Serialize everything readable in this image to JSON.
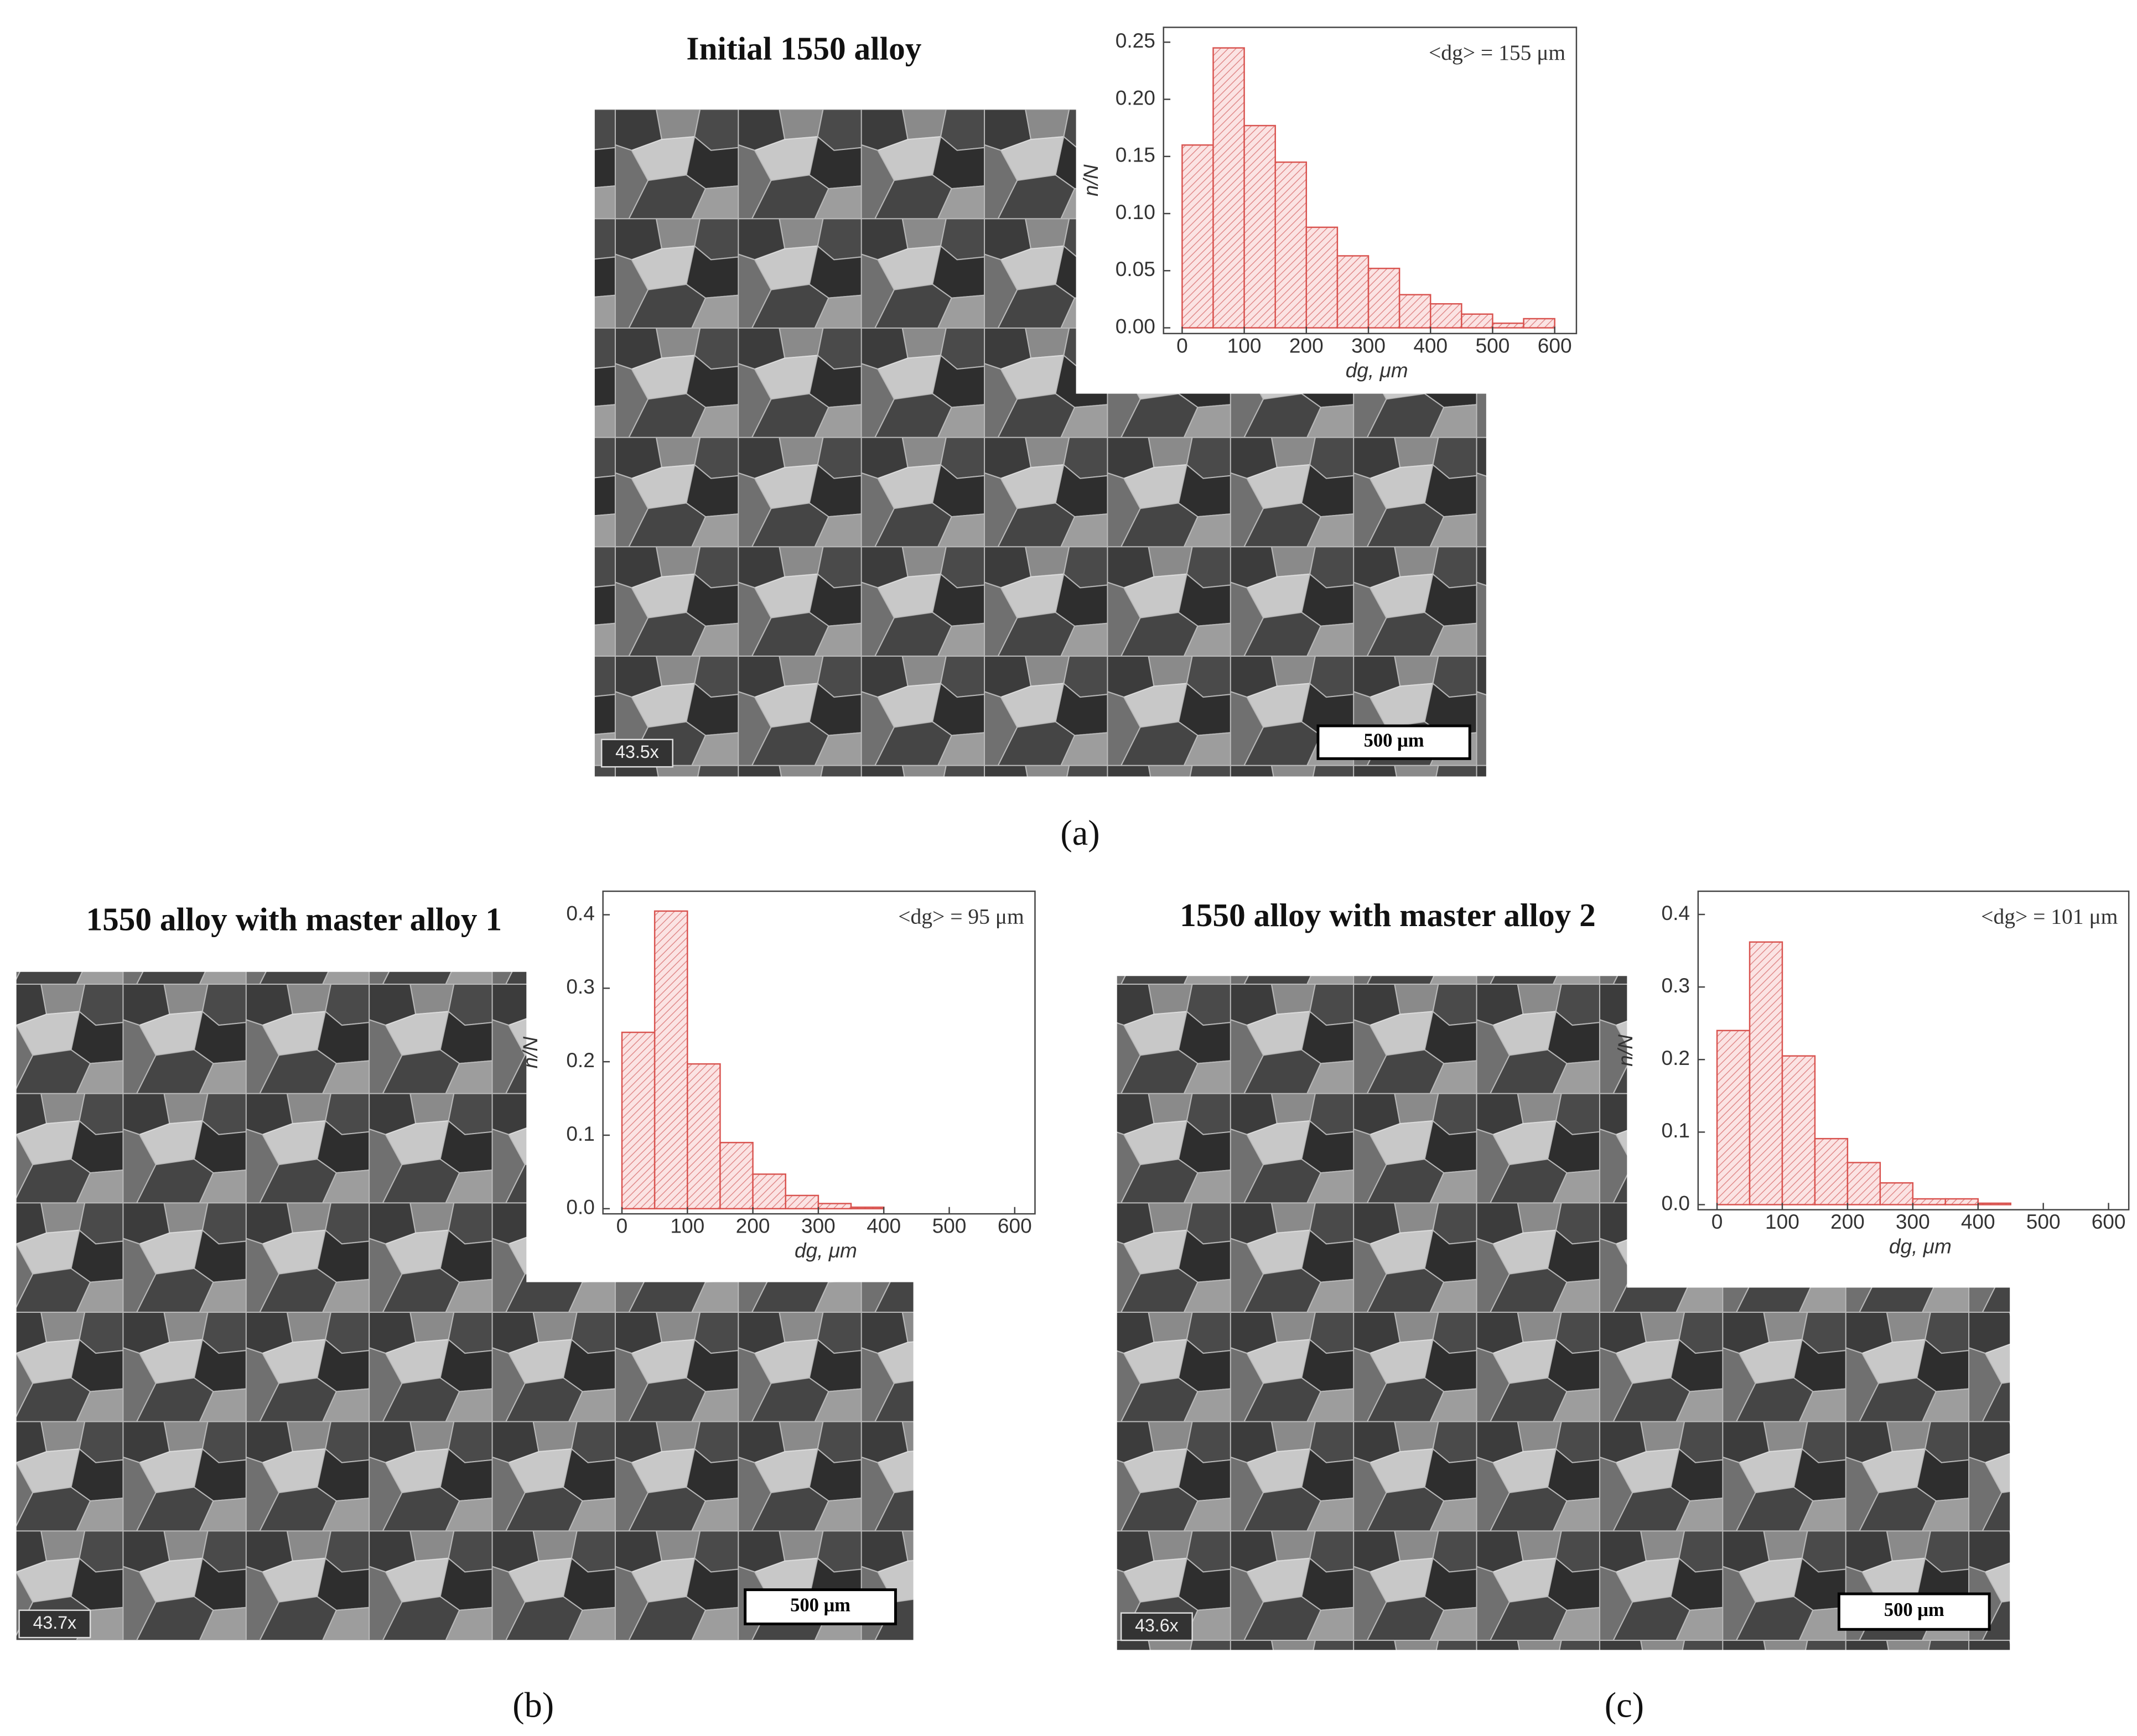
{
  "chart_data": [
    {
      "type": "histogram",
      "panel": "(a)",
      "title": "Initial 1550 alloy",
      "annotation": "<dg> = 155 μm",
      "magnification": "43.5x",
      "scale_bar": "500 μm",
      "xlabel": "dg, μm",
      "ylabel": "n/N",
      "color": "#d9534f",
      "bins": [
        0,
        50,
        100,
        150,
        200,
        250,
        300,
        350,
        400,
        450,
        500,
        550,
        600
      ],
      "values": [
        0.16,
        0.245,
        0.177,
        0.145,
        0.088,
        0.063,
        0.052,
        0.029,
        0.021,
        0.012,
        0.004,
        0.008
      ],
      "xlim": [
        -30,
        635
      ],
      "ylim": [
        -0.005,
        0.263
      ],
      "xticks": [
        0,
        100,
        200,
        300,
        400,
        500,
        600
      ],
      "yticks": [
        {
          "value": 0,
          "label": "0.00"
        },
        {
          "value": 0.05,
          "label": "0.05"
        },
        {
          "value": 0.1,
          "label": "0.10"
        },
        {
          "value": 0.15,
          "label": "0.15"
        },
        {
          "value": 0.2,
          "label": "0.20"
        },
        {
          "value": 0.25,
          "label": "0.25"
        }
      ]
    },
    {
      "type": "histogram",
      "panel": "(b)",
      "title": "1550 alloy with master alloy 1",
      "annotation": "<dg> = 95 μm",
      "magnification": "43.7x",
      "scale_bar": "500 μm",
      "xlabel": "dg, μm",
      "ylabel": "n/N",
      "color": "#d9534f",
      "bins": [
        0,
        50,
        100,
        150,
        200,
        250,
        300,
        350,
        400
      ],
      "values": [
        0.24,
        0.405,
        0.197,
        0.09,
        0.047,
        0.018,
        0.007,
        0.002
      ],
      "xlim": [
        -29,
        631
      ],
      "ylim": [
        -0.007,
        0.432
      ],
      "xticks": [
        0,
        100,
        200,
        300,
        400,
        500,
        600
      ],
      "yticks": [
        {
          "value": 0,
          "label": "0.0"
        },
        0.1,
        0.2,
        0.3,
        0.4
      ]
    },
    {
      "type": "histogram",
      "panel": "(c)",
      "title": "1550 alloy with master alloy 2",
      "annotation": "<dg> = 101 μm",
      "magnification": "43.6x",
      "scale_bar": "500 μm",
      "xlabel": "dg, μm",
      "ylabel": "n/N",
      "color": "#d9534f",
      "bins": [
        0,
        50,
        100,
        150,
        200,
        250,
        300,
        350,
        400,
        450
      ],
      "values": [
        0.24,
        0.362,
        0.205,
        0.091,
        0.058,
        0.03,
        0.008,
        0.008,
        0.002
      ],
      "xlim": [
        -29,
        631
      ],
      "ylim": [
        -0.007,
        0.432
      ],
      "xticks": [
        0,
        100,
        200,
        300,
        400,
        500,
        600
      ],
      "yticks": [
        {
          "value": 0,
          "label": "0.0"
        },
        0.1,
        0.2,
        0.3,
        0.4
      ]
    }
  ]
}
